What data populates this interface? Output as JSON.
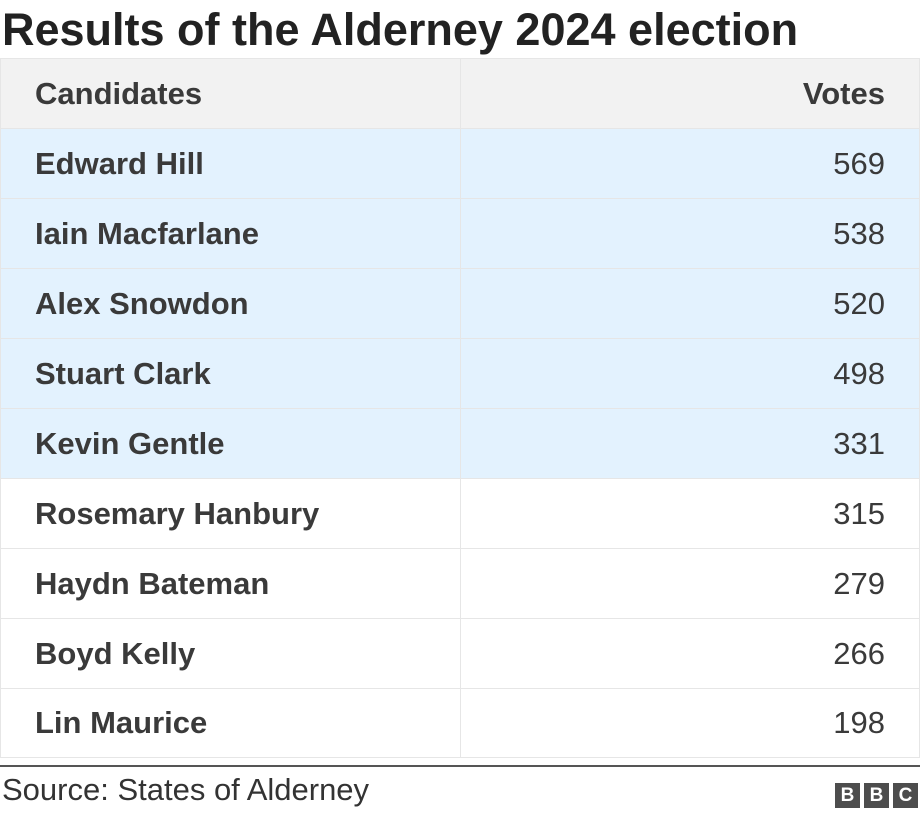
{
  "title": "Results of the Alderney 2024 election",
  "table": {
    "headers": {
      "name": "Candidates",
      "votes": "Votes"
    },
    "rows": [
      {
        "name": "Edward Hill",
        "votes": "569",
        "highlighted": true
      },
      {
        "name": "Iain Macfarlane",
        "votes": "538",
        "highlighted": true
      },
      {
        "name": "Alex Snowdon",
        "votes": "520",
        "highlighted": true
      },
      {
        "name": "Stuart Clark",
        "votes": "498",
        "highlighted": true
      },
      {
        "name": "Kevin Gentle",
        "votes": "331",
        "highlighted": true
      },
      {
        "name": "Rosemary Hanbury",
        "votes": "315",
        "highlighted": false
      },
      {
        "name": "Haydn Bateman",
        "votes": "279",
        "highlighted": false
      },
      {
        "name": "Boyd Kelly",
        "votes": "266",
        "highlighted": false
      },
      {
        "name": "Lin Maurice",
        "votes": "198",
        "highlighted": false
      }
    ]
  },
  "source": "Source: States of Alderney",
  "logo": {
    "letters": [
      "B",
      "B",
      "C"
    ]
  },
  "colors": {
    "highlight_row": "#e3f2fe",
    "header_row": "#f2f2f2",
    "text": "#222222",
    "logo_block": "#4d4d4d"
  },
  "chart_data": {
    "type": "table",
    "title": "Results of the Alderney 2024 election",
    "columns": [
      "Candidates",
      "Votes"
    ],
    "rows": [
      [
        "Edward Hill",
        569
      ],
      [
        "Iain Macfarlane",
        538
      ],
      [
        "Alex Snowdon",
        520
      ],
      [
        "Stuart Clark",
        498
      ],
      [
        "Kevin Gentle",
        331
      ],
      [
        "Rosemary Hanbury",
        315
      ],
      [
        "Haydn Bateman",
        279
      ],
      [
        "Boyd Kelly",
        266
      ],
      [
        "Lin Maurice",
        198
      ]
    ],
    "highlighted_rows": [
      "Edward Hill",
      "Iain Macfarlane",
      "Alex Snowdon",
      "Stuart Clark",
      "Kevin Gentle"
    ],
    "source": "Source: States of Alderney"
  }
}
